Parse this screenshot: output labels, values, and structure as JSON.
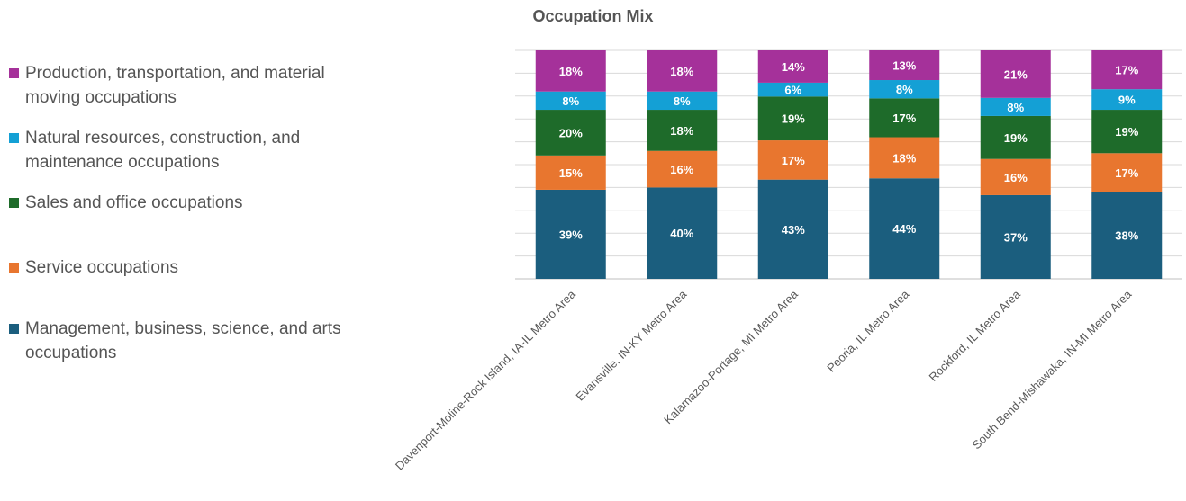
{
  "chart_data": {
    "type": "bar",
    "stacked": true,
    "title": "Occupation Mix",
    "xlabel": "",
    "ylabel": "",
    "ylim": [
      0,
      1
    ],
    "grid": true,
    "legend_position": "left",
    "categories": [
      "Davenport-Moline-Rock Island, IA-IL Metro Area",
      "Evansville, IN-KY Metro Area",
      "Kalamazoo-Portage, MI Metro Area",
      "Peoria, IL Metro Area",
      "Rockford, IL Metro Area",
      "South Bend-Mishawaka, IN-MI Metro Area"
    ],
    "series": [
      {
        "name": "Management, business, science, and arts occupations",
        "color": "#1b5e7e",
        "values": [
          0.39,
          0.4,
          0.43,
          0.44,
          0.37,
          0.38
        ],
        "labels": [
          "39%",
          "40%",
          "43%",
          "44%",
          "37%",
          "38%"
        ]
      },
      {
        "name": "Service occupations",
        "color": "#e8762f",
        "values": [
          0.15,
          0.16,
          0.17,
          0.18,
          0.16,
          0.17
        ],
        "labels": [
          "15%",
          "16%",
          "17%",
          "18%",
          "16%",
          "17%"
        ]
      },
      {
        "name": "Sales and office occupations",
        "color": "#1e6b2a",
        "values": [
          0.2,
          0.18,
          0.19,
          0.17,
          0.19,
          0.19
        ],
        "labels": [
          "20%",
          "18%",
          "19%",
          "17%",
          "19%",
          "19%"
        ]
      },
      {
        "name": "Natural resources, construction, and maintenance occupations",
        "color": "#14a0d5",
        "values": [
          0.08,
          0.08,
          0.06,
          0.08,
          0.08,
          0.09
        ],
        "labels": [
          "8%",
          "8%",
          "6%",
          "8%",
          "8%",
          "9%"
        ]
      },
      {
        "name": "Production, transportation, and material moving occupations",
        "color": "#a5319a",
        "values": [
          0.18,
          0.18,
          0.14,
          0.13,
          0.21,
          0.17
        ],
        "labels": [
          "18%",
          "18%",
          "14%",
          "13%",
          "21%",
          "17%"
        ]
      }
    ],
    "legend_order": [
      "Production, transportation, and material moving occupations",
      "Natural resources, construction, and maintenance occupations",
      "Sales and office occupations",
      "Service occupations",
      "Management, business, science, and arts occupations"
    ]
  }
}
